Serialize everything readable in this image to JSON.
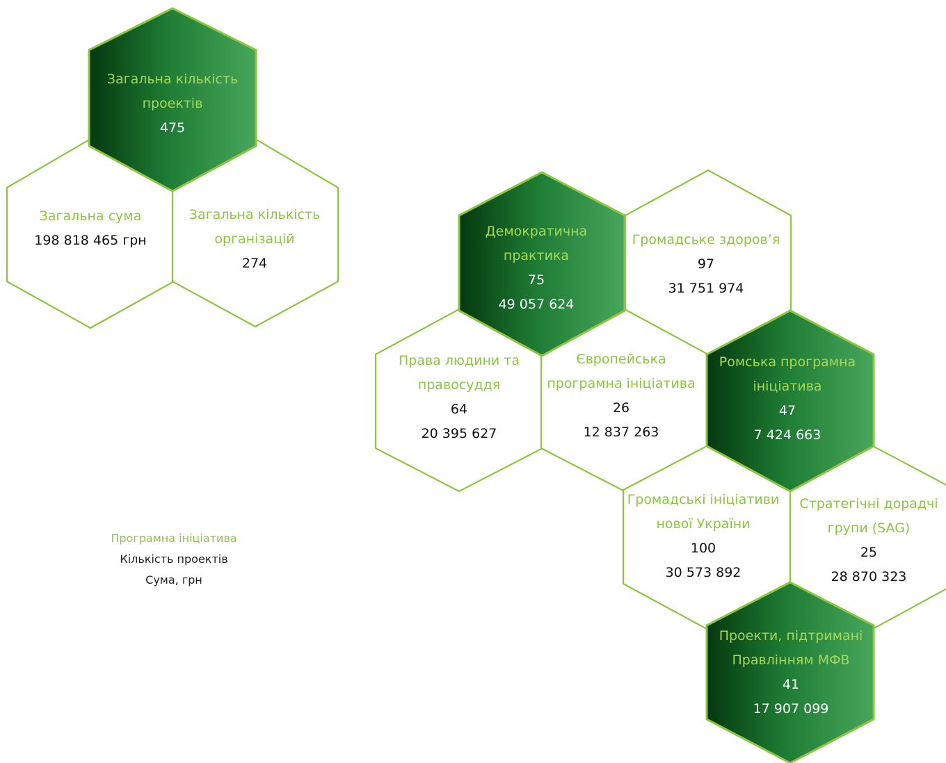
{
  "colors": {
    "accent_green": "#8cc63f",
    "dark_fill_start": "#05380f",
    "dark_fill_end": "#45a35a",
    "outline": "#8cc63f"
  },
  "summary": {
    "total_projects": {
      "title": "Загальна кількість проектів",
      "value": "475"
    },
    "total_sum": {
      "title": "Загальна сума",
      "value": "198 818 465 грн"
    },
    "total_orgs": {
      "title": "Загальна кількість організацій",
      "value": "274"
    }
  },
  "programs": {
    "democratic": {
      "title": "Демократична практика",
      "count": "75",
      "sum": "49 057 624"
    },
    "health": {
      "title": "Громадське здоров’я",
      "count": "97",
      "sum": "31 751 974"
    },
    "human_rights": {
      "title": "Права людини та правосуддя",
      "count": "64",
      "sum": "20 395 627"
    },
    "european": {
      "title": "Європейська програмна ініціатива",
      "count": "26",
      "sum": "12 837 263"
    },
    "roma": {
      "title": "Ромська програмна ініціатива",
      "count": "47",
      "sum": "7 424 663"
    },
    "new_ukraine": {
      "title": "Громадські ініціативи нової України",
      "count": "100",
      "sum": "30 573 892"
    },
    "sag": {
      "title": "Стратегічні дорадчі групи (SAG)",
      "count": "25",
      "sum": "28 870 323"
    },
    "board": {
      "title": "Проекти, підтримані Правлінням МФВ",
      "count": "41",
      "sum": "17 907 099"
    }
  },
  "legend": {
    "title": "Програмна ініціатива",
    "count_label": "Кількість проектів",
    "sum_label": "Сума, грн"
  }
}
